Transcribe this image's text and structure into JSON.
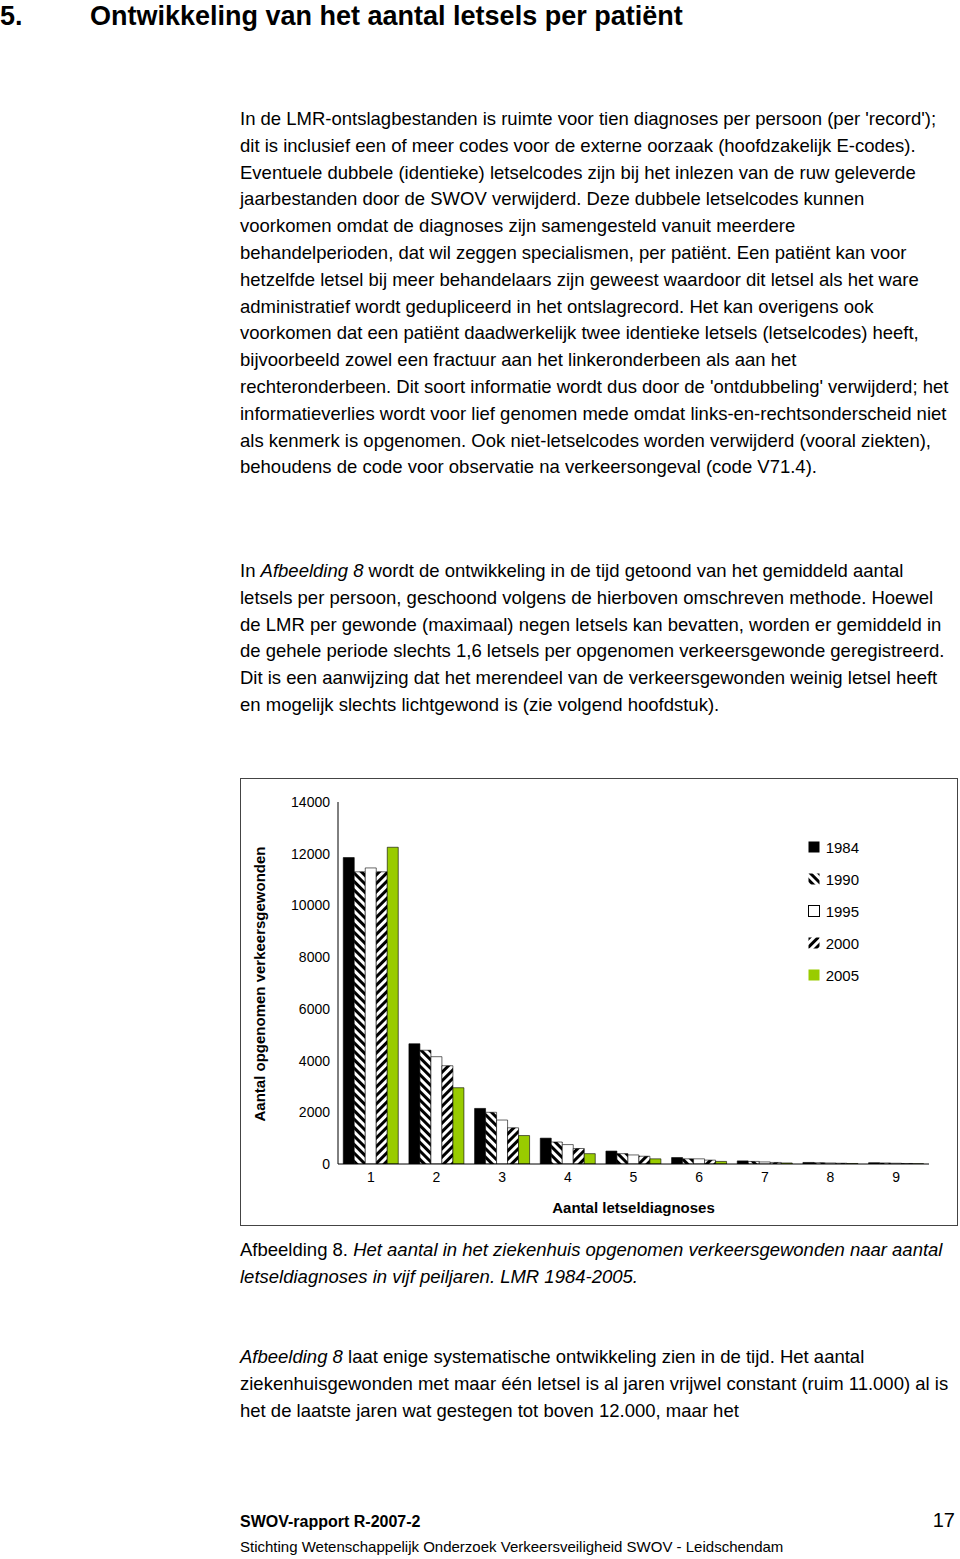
{
  "heading": {
    "number": "5.",
    "title": "Ontwikkeling van het aantal letsels per patiënt"
  },
  "paragraphs": [
    [
      "In de LMR-ontslagbestanden is ruimte voor tien diagnoses per persoon (per 'record'); dit is inclusief een of meer codes voor de externe oorzaak (hoofdzakelijk E-codes). Eventuele dubbele (identieke) letselcodes zijn bij het inlezen van de ruw geleverde jaarbestanden door de SWOV verwijderd. Deze dubbele letselcodes kunnen voorkomen omdat de diagnoses zijn samengesteld vanuit meerdere behandelperioden, dat wil zeggen specialismen, per patiënt. Een patiënt kan voor hetzelfde letsel bij meer behandelaars zijn geweest waardoor dit letsel als het ware administratief wordt gedupliceerd in het ontslagrecord. Het kan overigens ook voorkomen dat een patiënt daadwerkelijk twee identieke letsels (letselcodes) heeft, bijvoorbeeld zowel een fractuur aan het linkeronderbeen als aan het rechteronderbeen. Dit soort informatie wordt dus door de 'ontdubbeling' verwijderd; het informatieverlies wordt voor lief genomen mede omdat links-en-rechtsonderscheid niet als kenmerk is opgenomen. Ook niet-letselcodes worden verwijderd (vooral ziekten), behoudens de code voor observatie na verkeersongeval (code V71.4)."
    ],
    [
      "In ",
      {
        "em": "Afbeelding 8"
      },
      " wordt de ontwikkeling in de tijd getoond van het gemiddeld aantal letsels per persoon, geschoond volgens de hierboven omschreven methode. Hoewel de LMR per gewonde (maximaal) negen letsels kan bevatten, worden er gemiddeld in de gehele periode slechts 1,6 letsels per opgenomen verkeersgewonde geregistreerd. Dit is een aanwijzing dat het merendeel van de verkeersgewonden weinig letsel heeft en mogelijk slechts lichtgewond is (zie volgend hoofdstuk)."
    ]
  ],
  "chart_data": {
    "type": "bar",
    "x_label": "Aantal letseldiagnoses",
    "y_label": "Aantal opgenomen verkeersgewonden",
    "categories": [
      "1",
      "2",
      "3",
      "4",
      "5",
      "6",
      "7",
      "8",
      "9"
    ],
    "series": [
      {
        "name": "1984",
        "color": "#000000",
        "values": [
          11850,
          4650,
          2150,
          1000,
          500,
          250,
          120,
          60,
          50
        ]
      },
      {
        "name": "1990",
        "color": "#000000",
        "values": [
          11300,
          4400,
          2000,
          850,
          400,
          200,
          100,
          50,
          40
        ]
      },
      {
        "name": "1995",
        "color": "#ffffff",
        "values": [
          11450,
          4150,
          1700,
          750,
          350,
          200,
          80,
          40,
          30
        ]
      },
      {
        "name": "2000",
        "color": "#000000",
        "values": [
          11300,
          3800,
          1400,
          600,
          300,
          150,
          60,
          30,
          20
        ]
      },
      {
        "name": "2005",
        "color": "#99cc00",
        "values": [
          12250,
          2950,
          1100,
          400,
          200,
          100,
          40,
          20,
          10
        ]
      }
    ],
    "ylim": [
      0,
      14000
    ],
    "yticks": [
      0,
      2000,
      4000,
      6000,
      8000,
      10000,
      12000,
      14000
    ],
    "grid": false,
    "legend": "upper right"
  },
  "caption": [
    "Afbeelding 8. ",
    {
      "em": "Het aantal in het ziekenhuis opgenomen verkeersgewonden naar aantal letseldiagnoses in vijf peiljaren. LMR 1984-2005."
    }
  ],
  "closing_paragraph": [
    {
      "em": "Afbeelding 8"
    },
    " laat enige systematische ontwikkeling zien in de tijd. Het aantal ziekenhuisgewonden met maar één letsel is al jaren vrijwel constant (ruim 11.000) al is het de laatste jaren wat gestegen tot boven 12.000, maar het"
  ],
  "footer": {
    "report": "SWOV-rapport R-2007-2",
    "page": "17",
    "publisher": "Stichting Wetenschappelijk Onderzoek Verkeersveiligheid SWOV - Leidschendam"
  }
}
